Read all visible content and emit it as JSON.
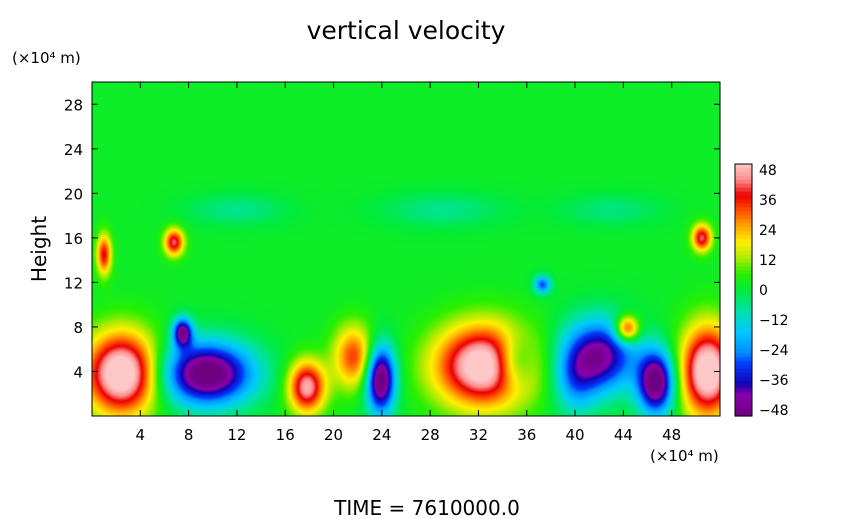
{
  "chart_data": {
    "type": "heatmap",
    "title": "vertical velocity",
    "ylabel": "Height",
    "y_unit": "(×10⁴ m)",
    "x_unit": "(×10⁴ m)",
    "footer": "TIME  =  7610000.0",
    "xlim": [
      0,
      52
    ],
    "ylim": [
      0,
      30
    ],
    "x_ticks": [
      4,
      8,
      12,
      16,
      20,
      24,
      28,
      32,
      36,
      40,
      44,
      48
    ],
    "y_ticks": [
      4,
      8,
      12,
      16,
      20,
      24,
      28
    ],
    "colorbar": {
      "ticks": [
        48,
        36,
        24,
        12,
        0,
        -12,
        -24,
        -36,
        -48
      ],
      "range": [
        -48,
        48
      ]
    },
    "background_value": 2,
    "features": [
      {
        "x": 2.5,
        "y": 3.8,
        "rx": 3.0,
        "ry": 3.6,
        "value": 56
      },
      {
        "x": 51.0,
        "y": 4.0,
        "rx": 2.2,
        "ry": 4.0,
        "value": 54
      },
      {
        "x": 32.5,
        "y": 4.5,
        "rx": 4.0,
        "ry": 3.6,
        "value": 54
      },
      {
        "x": 17.8,
        "y": 2.6,
        "rx": 1.5,
        "ry": 2.3,
        "value": 44
      },
      {
        "x": 21.7,
        "y": 5.3,
        "rx": 1.7,
        "ry": 2.8,
        "value": 30
      },
      {
        "x": 44.3,
        "y": 7.8,
        "rx": 1.0,
        "ry": 1.2,
        "value": 38
      },
      {
        "x": 9.5,
        "y": 3.8,
        "rx": 3.8,
        "ry": 2.8,
        "value": -55
      },
      {
        "x": 7.5,
        "y": 7.5,
        "rx": 0.8,
        "ry": 1.3,
        "value": -45
      },
      {
        "x": 23.9,
        "y": 3.3,
        "rx": 1.2,
        "ry": 3.0,
        "value": -56
      },
      {
        "x": 42.0,
        "y": 5.4,
        "rx": 3.0,
        "ry": 3.2,
        "value": -45
      },
      {
        "x": 46.7,
        "y": 3.0,
        "rx": 1.5,
        "ry": 2.8,
        "value": -54
      },
      {
        "x": 35.0,
        "y": 4.8,
        "rx": 1.6,
        "ry": 2.4,
        "value": -24
      },
      {
        "x": 40.0,
        "y": 3.0,
        "rx": 1.8,
        "ry": 3.0,
        "value": -18
      },
      {
        "x": 1.0,
        "y": 14.5,
        "rx": 0.6,
        "ry": 1.8,
        "value": 34
      },
      {
        "x": 6.8,
        "y": 15.6,
        "rx": 0.8,
        "ry": 1.2,
        "value": 38
      },
      {
        "x": 50.5,
        "y": 16.0,
        "rx": 0.8,
        "ry": 1.2,
        "value": 38
      },
      {
        "x": 37.3,
        "y": 11.8,
        "rx": 0.7,
        "ry": 0.8,
        "value": -30
      },
      {
        "x": 29.0,
        "y": 18.5,
        "rx": 5.0,
        "ry": 1.5,
        "value": -8
      },
      {
        "x": 12.0,
        "y": 18.5,
        "rx": 4.0,
        "ry": 1.4,
        "value": -8
      },
      {
        "x": 43.0,
        "y": 18.5,
        "rx": 4.0,
        "ry": 1.4,
        "value": -7
      }
    ]
  }
}
